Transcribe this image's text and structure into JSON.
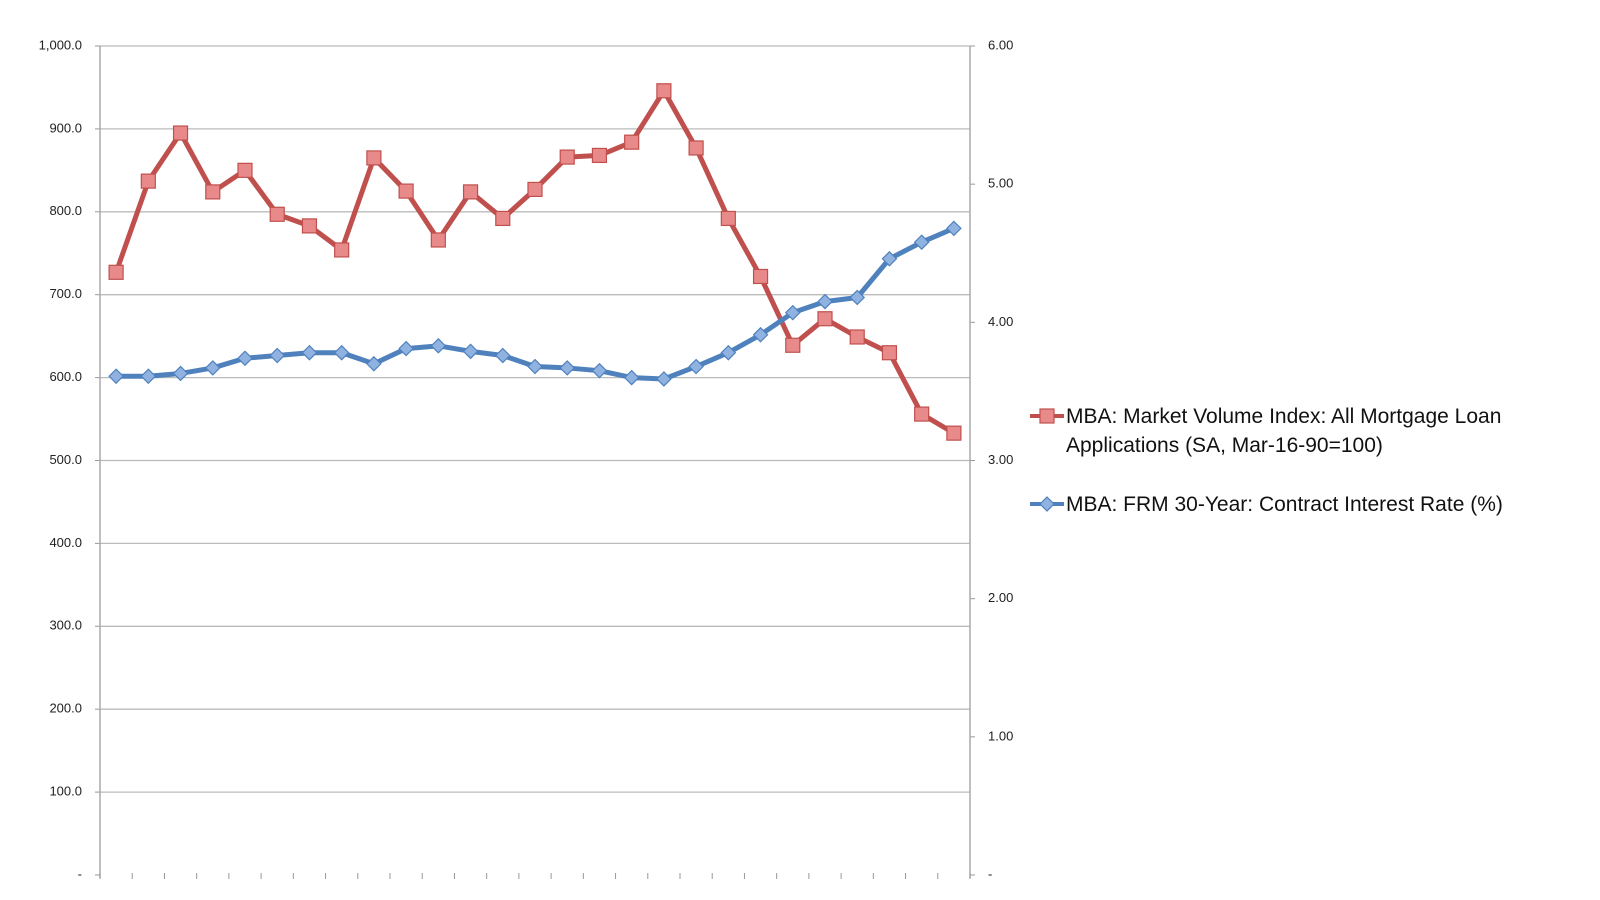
{
  "chart_data": {
    "type": "line",
    "categories": [
      null,
      null,
      null,
      null,
      null,
      null,
      null,
      null,
      null,
      null,
      null,
      null,
      null,
      null,
      null,
      null,
      null,
      null,
      null,
      null,
      null,
      null,
      null,
      null,
      null,
      null,
      null
    ],
    "series": [
      {
        "name": "MBA: Market Volume Index: All Mortgage Loan Applications (SA, Mar-16-90=100)",
        "color": "#c0504d",
        "marker": "square",
        "values": [
          727,
          837,
          895,
          824,
          850,
          797,
          783,
          754,
          865,
          825,
          766,
          824,
          792,
          827,
          866,
          868,
          884,
          946,
          877,
          792,
          722,
          639,
          671,
          649,
          630,
          556,
          533
        ]
      },
      {
        "name": "MBA: FRM 30-Year: Contract Interest Rate (%)",
        "color": "#4f81bd",
        "marker": "diamond",
        "axis": "y2",
        "values": [
          3.61,
          3.61,
          3.63,
          3.67,
          3.74,
          3.76,
          3.78,
          3.78,
          3.7,
          3.81,
          3.83,
          3.79,
          3.76,
          3.68,
          3.67,
          3.65,
          3.6,
          3.59,
          3.68,
          3.78,
          3.91,
          4.07,
          4.15,
          4.18,
          4.46,
          4.58,
          4.68
        ]
      }
    ],
    "ylim": [
      0,
      1000
    ],
    "yticks": [
      {
        "value": 0,
        "label": "-"
      },
      {
        "value": 100,
        "label": "100.0"
      },
      {
        "value": 200,
        "label": "200.0"
      },
      {
        "value": 300,
        "label": "300.0"
      },
      {
        "value": 400,
        "label": "400.0"
      },
      {
        "value": 500,
        "label": "500.0"
      },
      {
        "value": 600,
        "label": "600.0"
      },
      {
        "value": 700,
        "label": "700.0"
      },
      {
        "value": 800,
        "label": "800.0"
      },
      {
        "value": 900,
        "label": "900.0"
      },
      {
        "value": 1000,
        "label": "1,000.0"
      }
    ],
    "y2lim": [
      0,
      6
    ],
    "y2ticks": [
      {
        "value": 0,
        "label": "-"
      },
      {
        "value": 1,
        "label": "1.00"
      },
      {
        "value": 2,
        "label": "2.00"
      },
      {
        "value": 3,
        "label": "3.00"
      },
      {
        "value": 4,
        "label": "4.00"
      },
      {
        "value": 5,
        "label": "5.00"
      },
      {
        "value": 6,
        "label": "6.00"
      }
    ],
    "grid": true
  }
}
